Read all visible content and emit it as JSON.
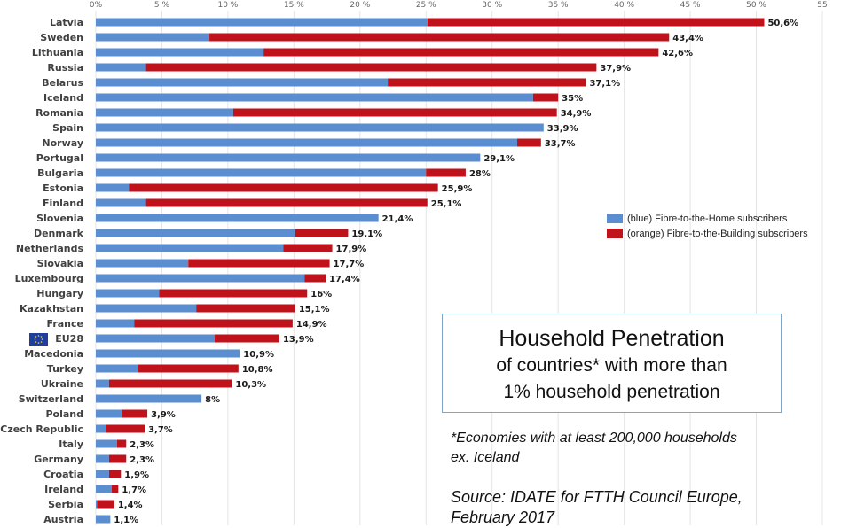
{
  "chart_data": {
    "type": "bar",
    "orientation": "horizontal",
    "stacked": true,
    "title": "Household Penetration",
    "subtitle_line1": "of countries* with more than",
    "subtitle_line2": "1% household penetration",
    "note_line1": "*Economies with at least 200,000 households",
    "note_line2": "ex. Iceland",
    "source_line1": "Source: IDATE for FTTH Council Europe,",
    "source_line2": "February 2017",
    "xlim": [
      0,
      55
    ],
    "xticks": [
      0,
      5,
      10,
      15,
      20,
      25,
      30,
      35,
      40,
      45,
      50,
      55
    ],
    "xtick_labels": [
      "0%",
      "5 %",
      "10 %",
      "15 %",
      "20 %",
      "25 %",
      "30 %",
      "35 %",
      "40 %",
      "45 %",
      "50 %",
      "55"
    ],
    "legend_position": "right",
    "categories": [
      "Latvia",
      "Sweden",
      "Lithuania",
      "Russia",
      "Belarus",
      "Iceland",
      "Romania",
      "Spain",
      "Norway",
      "Portugal",
      "Bulgaria",
      "Estonia",
      "Finland",
      "Slovenia",
      "Denmark",
      "Netherlands",
      "Slovakia",
      "Luxembourg",
      "Hungary",
      "Kazakhstan",
      "France",
      "EU28",
      "Macedonia",
      "Turkey",
      "Ukraine",
      "Switzerland",
      "Poland",
      "Czech Republic",
      "Italy",
      "Germany",
      "Croatia",
      "Ireland",
      "Serbia",
      "Austria"
    ],
    "series": [
      {
        "name": "(blue) Fibre-to-the-Home subscribers",
        "color": "#5b8ed0",
        "values": [
          25.1,
          8.6,
          12.7,
          3.8,
          22.1,
          33.1,
          10.4,
          33.9,
          31.9,
          29.1,
          25.0,
          2.5,
          3.8,
          21.4,
          15.1,
          14.2,
          7.0,
          15.8,
          4.8,
          7.6,
          2.9,
          9.0,
          10.9,
          3.2,
          1.0,
          8.0,
          2.0,
          0.8,
          1.6,
          1.0,
          1.0,
          1.2,
          0.1,
          1.1
        ],
        "value_note": "estimated from gridlines"
      },
      {
        "name": "(orange) Fibre-to-the-Building subscribers",
        "color": "#c0121b",
        "values": [
          25.5,
          34.8,
          29.9,
          34.1,
          15.0,
          1.9,
          24.5,
          0.0,
          1.8,
          0.0,
          3.0,
          23.4,
          21.3,
          0.0,
          4.0,
          3.7,
          10.7,
          1.6,
          11.2,
          7.5,
          12.0,
          4.9,
          0.0,
          7.6,
          9.3,
          0.0,
          1.9,
          2.9,
          0.7,
          1.3,
          0.9,
          0.5,
          1.3,
          0.0
        ],
        "value_note": "estimated from gridlines"
      }
    ],
    "total_labels": [
      "50,6%",
      "43,4%",
      "42,6%",
      "37,9%",
      "37,1%",
      "35%",
      "34,9%",
      "33,9%",
      "33,7%",
      "29,1%",
      "28%",
      "25,9%",
      "25,1%",
      "21,4%",
      "19,1%",
      "17,9%",
      "17,7%",
      "17,4%",
      "16%",
      "15,1%",
      "14,9%",
      "13,9%",
      "10,9%",
      "10,8%",
      "10,3%",
      "8%",
      "3,9%",
      "3,7%",
      "2,3%",
      "2,3%",
      "1,9%",
      "1,7%",
      "1,4%",
      "1,1%"
    ]
  }
}
